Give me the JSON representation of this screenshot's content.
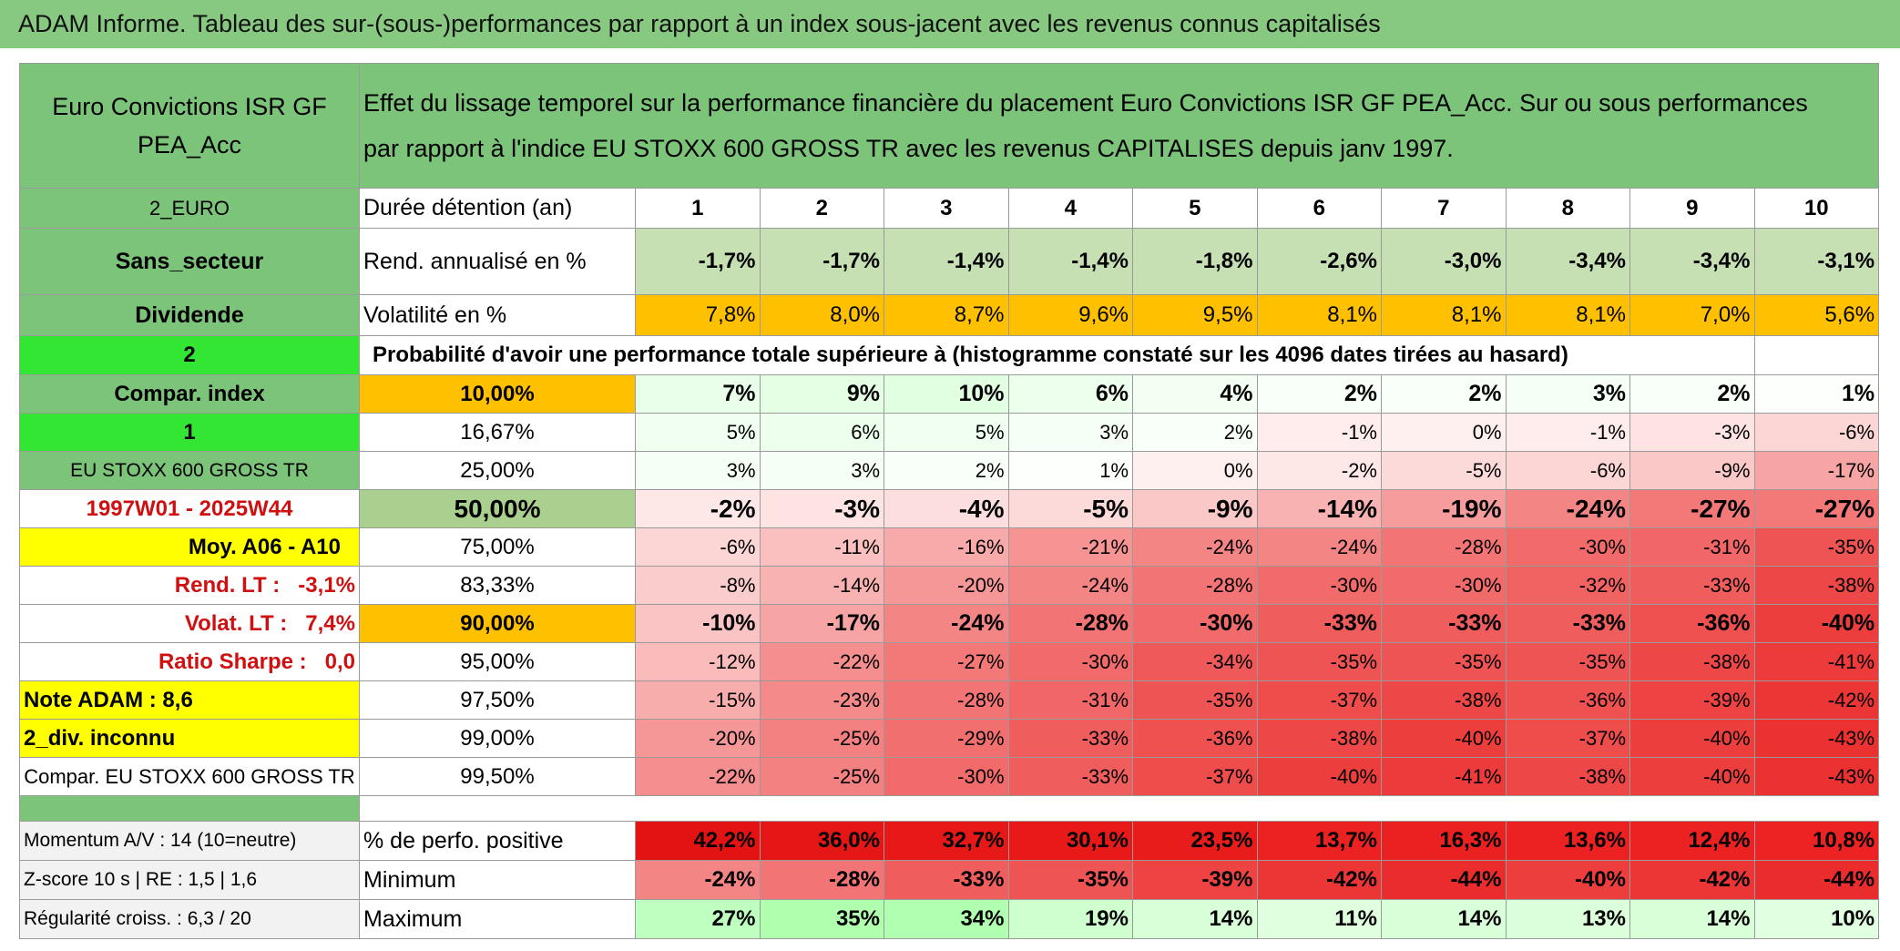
{
  "title": "ADAM Informe. Tableau des sur-(sous-)performances par rapport à un index sous-jacent avec les revenus connus capitalisés",
  "table": {
    "fund": "Euro Convictions ISR GF PEA_Acc",
    "description": "Effet du lissage temporel sur la performance financière du placement Euro Convictions ISR GF PEA_Acc. Sur ou sous performances par rapport à l'indice EU STOXX 600 GROSS TR avec les revenus CAPITALISES depuis janv 1997.",
    "top_rows": [
      {
        "label": "2_EURO",
        "key": "Durée détention (an)",
        "values": [
          "1",
          "2",
          "3",
          "4",
          "5",
          "6",
          "7",
          "8",
          "9",
          "10"
        ]
      },
      {
        "label": "Sans_secteur",
        "key": "Rend. annualisé en %",
        "values": [
          "-1,7%",
          "-1,7%",
          "-1,4%",
          "-1,4%",
          "-1,8%",
          "-2,6%",
          "-3,0%",
          "-3,4%",
          "-3,4%",
          "-3,1%"
        ]
      },
      {
        "label": "Dividende",
        "key": "Volatilité en %",
        "values": [
          "7,8%",
          "8,0%",
          "8,7%",
          "9,6%",
          "9,5%",
          "8,1%",
          "8,1%",
          "8,1%",
          "7,0%",
          "5,6%"
        ]
      }
    ],
    "prob_header": {
      "label": "2",
      "text": "Probabilité d'avoir une performance totale supérieure à (histogramme constaté sur les 4096 dates tirées au hasard)"
    },
    "prob_rows": [
      {
        "label": "Compar. index",
        "threshold": "10,00%",
        "values": [
          "7%",
          "9%",
          "10%",
          "6%",
          "4%",
          "2%",
          "2%",
          "3%",
          "2%",
          "1%"
        ]
      },
      {
        "label": "1",
        "threshold": "16,67%",
        "values": [
          "5%",
          "6%",
          "5%",
          "3%",
          "2%",
          "-1%",
          "0%",
          "-1%",
          "-3%",
          "-6%"
        ]
      },
      {
        "label": "EU STOXX 600 GROSS TR",
        "threshold": "25,00%",
        "values": [
          "3%",
          "3%",
          "2%",
          "1%",
          "0%",
          "-2%",
          "-5%",
          "-6%",
          "-9%",
          "-17%"
        ]
      },
      {
        "label": "1997W01 - 2025W44",
        "threshold": "50,00%",
        "values": [
          "-2%",
          "-3%",
          "-4%",
          "-5%",
          "-9%",
          "-14%",
          "-19%",
          "-24%",
          "-27%",
          "-27%"
        ]
      },
      {
        "label": "Moy. A06 - A10",
        "threshold": "75,00%",
        "values": [
          "-6%",
          "-11%",
          "-16%",
          "-21%",
          "-24%",
          "-24%",
          "-28%",
          "-30%",
          "-31%",
          "-35%"
        ]
      },
      {
        "label": "Rend. LT :   -3,1%",
        "threshold": "83,33%",
        "values": [
          "-8%",
          "-14%",
          "-20%",
          "-24%",
          "-28%",
          "-30%",
          "-30%",
          "-32%",
          "-33%",
          "-38%"
        ]
      },
      {
        "label": "Volat. LT :   7,4%",
        "threshold": "90,00%",
        "values": [
          "-10%",
          "-17%",
          "-24%",
          "-28%",
          "-30%",
          "-33%",
          "-33%",
          "-33%",
          "-36%",
          "-40%"
        ]
      },
      {
        "label": "Ratio Sharpe :   0,0",
        "threshold": "95,00%",
        "values": [
          "-12%",
          "-22%",
          "-27%",
          "-30%",
          "-34%",
          "-35%",
          "-35%",
          "-35%",
          "-38%",
          "-41%"
        ]
      },
      {
        "label": "Note ADAM : 8,6",
        "threshold": "97,50%",
        "values": [
          "-15%",
          "-23%",
          "-28%",
          "-31%",
          "-35%",
          "-37%",
          "-38%",
          "-36%",
          "-39%",
          "-42%"
        ]
      },
      {
        "label": "2_div. inconnu",
        "threshold": "99,00%",
        "values": [
          "-20%",
          "-25%",
          "-29%",
          "-33%",
          "-36%",
          "-38%",
          "-40%",
          "-37%",
          "-40%",
          "-43%"
        ]
      },
      {
        "label": "Compar. EU STOXX 600 GROSS TR",
        "threshold": "99,50%",
        "values": [
          "-22%",
          "-25%",
          "-30%",
          "-33%",
          "-37%",
          "-40%",
          "-41%",
          "-38%",
          "-40%",
          "-43%"
        ]
      }
    ],
    "stat_rows": [
      {
        "label": "Momentum A/V : 14 (10=neutre)",
        "key": "% de perfo. positive",
        "values": [
          "42,2%",
          "36,0%",
          "32,7%",
          "30,1%",
          "23,5%",
          "13,7%",
          "16,3%",
          "13,6%",
          "12,4%",
          "10,8%"
        ]
      },
      {
        "label": "Z-score 10 s | RE : 1,5 | 1,6",
        "key": "Minimum",
        "values": [
          "-24%",
          "-28%",
          "-33%",
          "-35%",
          "-39%",
          "-42%",
          "-44%",
          "-40%",
          "-42%",
          "-44%"
        ]
      },
      {
        "label": "Régularité croiss. : 6,3 / 20",
        "key": "Maximum",
        "values": [
          "27%",
          "35%",
          "34%",
          "19%",
          "14%",
          "11%",
          "14%",
          "13%",
          "14%",
          "10%"
        ]
      }
    ]
  }
}
